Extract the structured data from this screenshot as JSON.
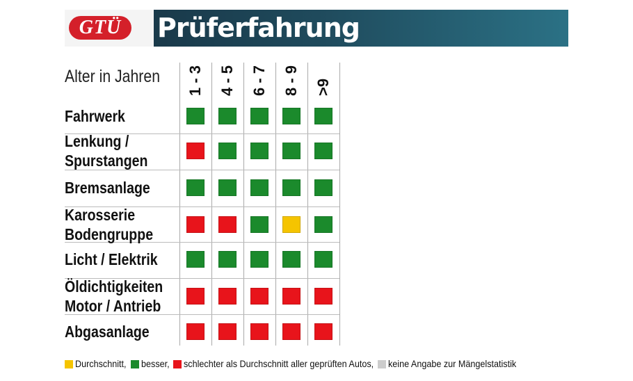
{
  "header": {
    "logo": "GTÜ",
    "title": "Prüferfahrung"
  },
  "table": {
    "axis_label": "Alter in Jahren",
    "columns": [
      "1 - 3",
      "4 - 5",
      "6 - 7",
      "8 - 9",
      ">9"
    ],
    "rows": [
      {
        "label": "Fahrwerk",
        "cells": [
          "#1b8a2c",
          "#1b8a2c",
          "#1b8a2c",
          "#1b8a2c",
          "#1b8a2c"
        ]
      },
      {
        "label": "Lenkung /\nSpurstangen",
        "cells": [
          "#e8141b",
          "#1b8a2c",
          "#1b8a2c",
          "#1b8a2c",
          "#1b8a2c"
        ]
      },
      {
        "label": "Bremsanlage",
        "cells": [
          "#1b8a2c",
          "#1b8a2c",
          "#1b8a2c",
          "#1b8a2c",
          "#1b8a2c"
        ]
      },
      {
        "label": "Karosserie\nBodengruppe",
        "cells": [
          "#e8141b",
          "#e8141b",
          "#1b8a2c",
          "#f5c400",
          "#1b8a2c"
        ]
      },
      {
        "label": "Licht / Elektrik",
        "cells": [
          "#1b8a2c",
          "#1b8a2c",
          "#1b8a2c",
          "#1b8a2c",
          "#1b8a2c"
        ]
      },
      {
        "label": "Öldichtigkeiten\nMotor / Antrieb",
        "cells": [
          "#e8141b",
          "#e8141b",
          "#e8141b",
          "#e8141b",
          "#e8141b"
        ]
      },
      {
        "label": "Abgasanlage",
        "cells": [
          "#e8141b",
          "#e8141b",
          "#e8141b",
          "#e8141b",
          "#e8141b"
        ]
      }
    ]
  },
  "legend": [
    {
      "color": "#f5c400",
      "label": "Durchschnitt,"
    },
    {
      "color": "#1b8a2c",
      "label": "besser,"
    },
    {
      "color": "#e8141b",
      "label": "schlechter als Durchschnitt aller geprüften Autos,"
    },
    {
      "color": "#cccccc",
      "label": "keine Angabe zur Mängelstatistik"
    }
  ]
}
